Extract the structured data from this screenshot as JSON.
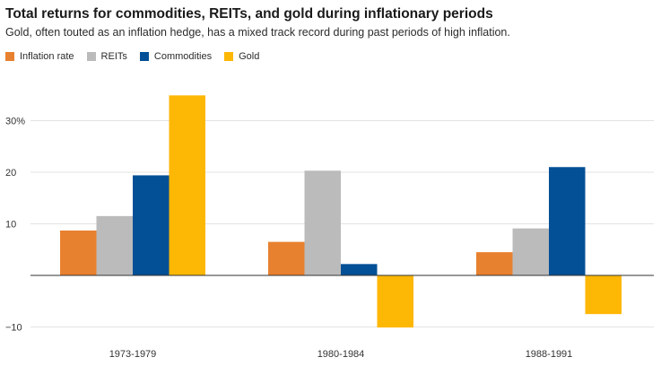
{
  "chart_data": {
    "type": "bar",
    "title": "Total returns for commodities, REITs, and gold during inflationary periods",
    "subtitle": "Gold, often touted as an inflation hedge, has a mixed track record during past periods of high inflation.",
    "categories": [
      "1973-1979",
      "1980-1984",
      "1988-1991"
    ],
    "series": [
      {
        "name": "Inflation rate",
        "color": "#e8812f",
        "values": [
          8.7,
          6.5,
          4.5
        ]
      },
      {
        "name": "REITs",
        "color": "#bbbbbb",
        "values": [
          11.5,
          20.3,
          9.1
        ]
      },
      {
        "name": "Commodities",
        "color": "#035096",
        "values": [
          19.4,
          2.2,
          21.0
        ]
      },
      {
        "name": "Gold",
        "color": "#fdb705",
        "values": [
          34.9,
          -10.1,
          -7.5
        ]
      }
    ],
    "yticks": [
      {
        "value": 30,
        "label": "30%"
      },
      {
        "value": 20,
        "label": "20"
      },
      {
        "value": 10,
        "label": "10"
      },
      {
        "value": -10,
        "label": "−10"
      }
    ],
    "ylim": [
      -10,
      40
    ],
    "grid": true,
    "legend_position": "top-left",
    "xlabel": "",
    "ylabel": ""
  }
}
